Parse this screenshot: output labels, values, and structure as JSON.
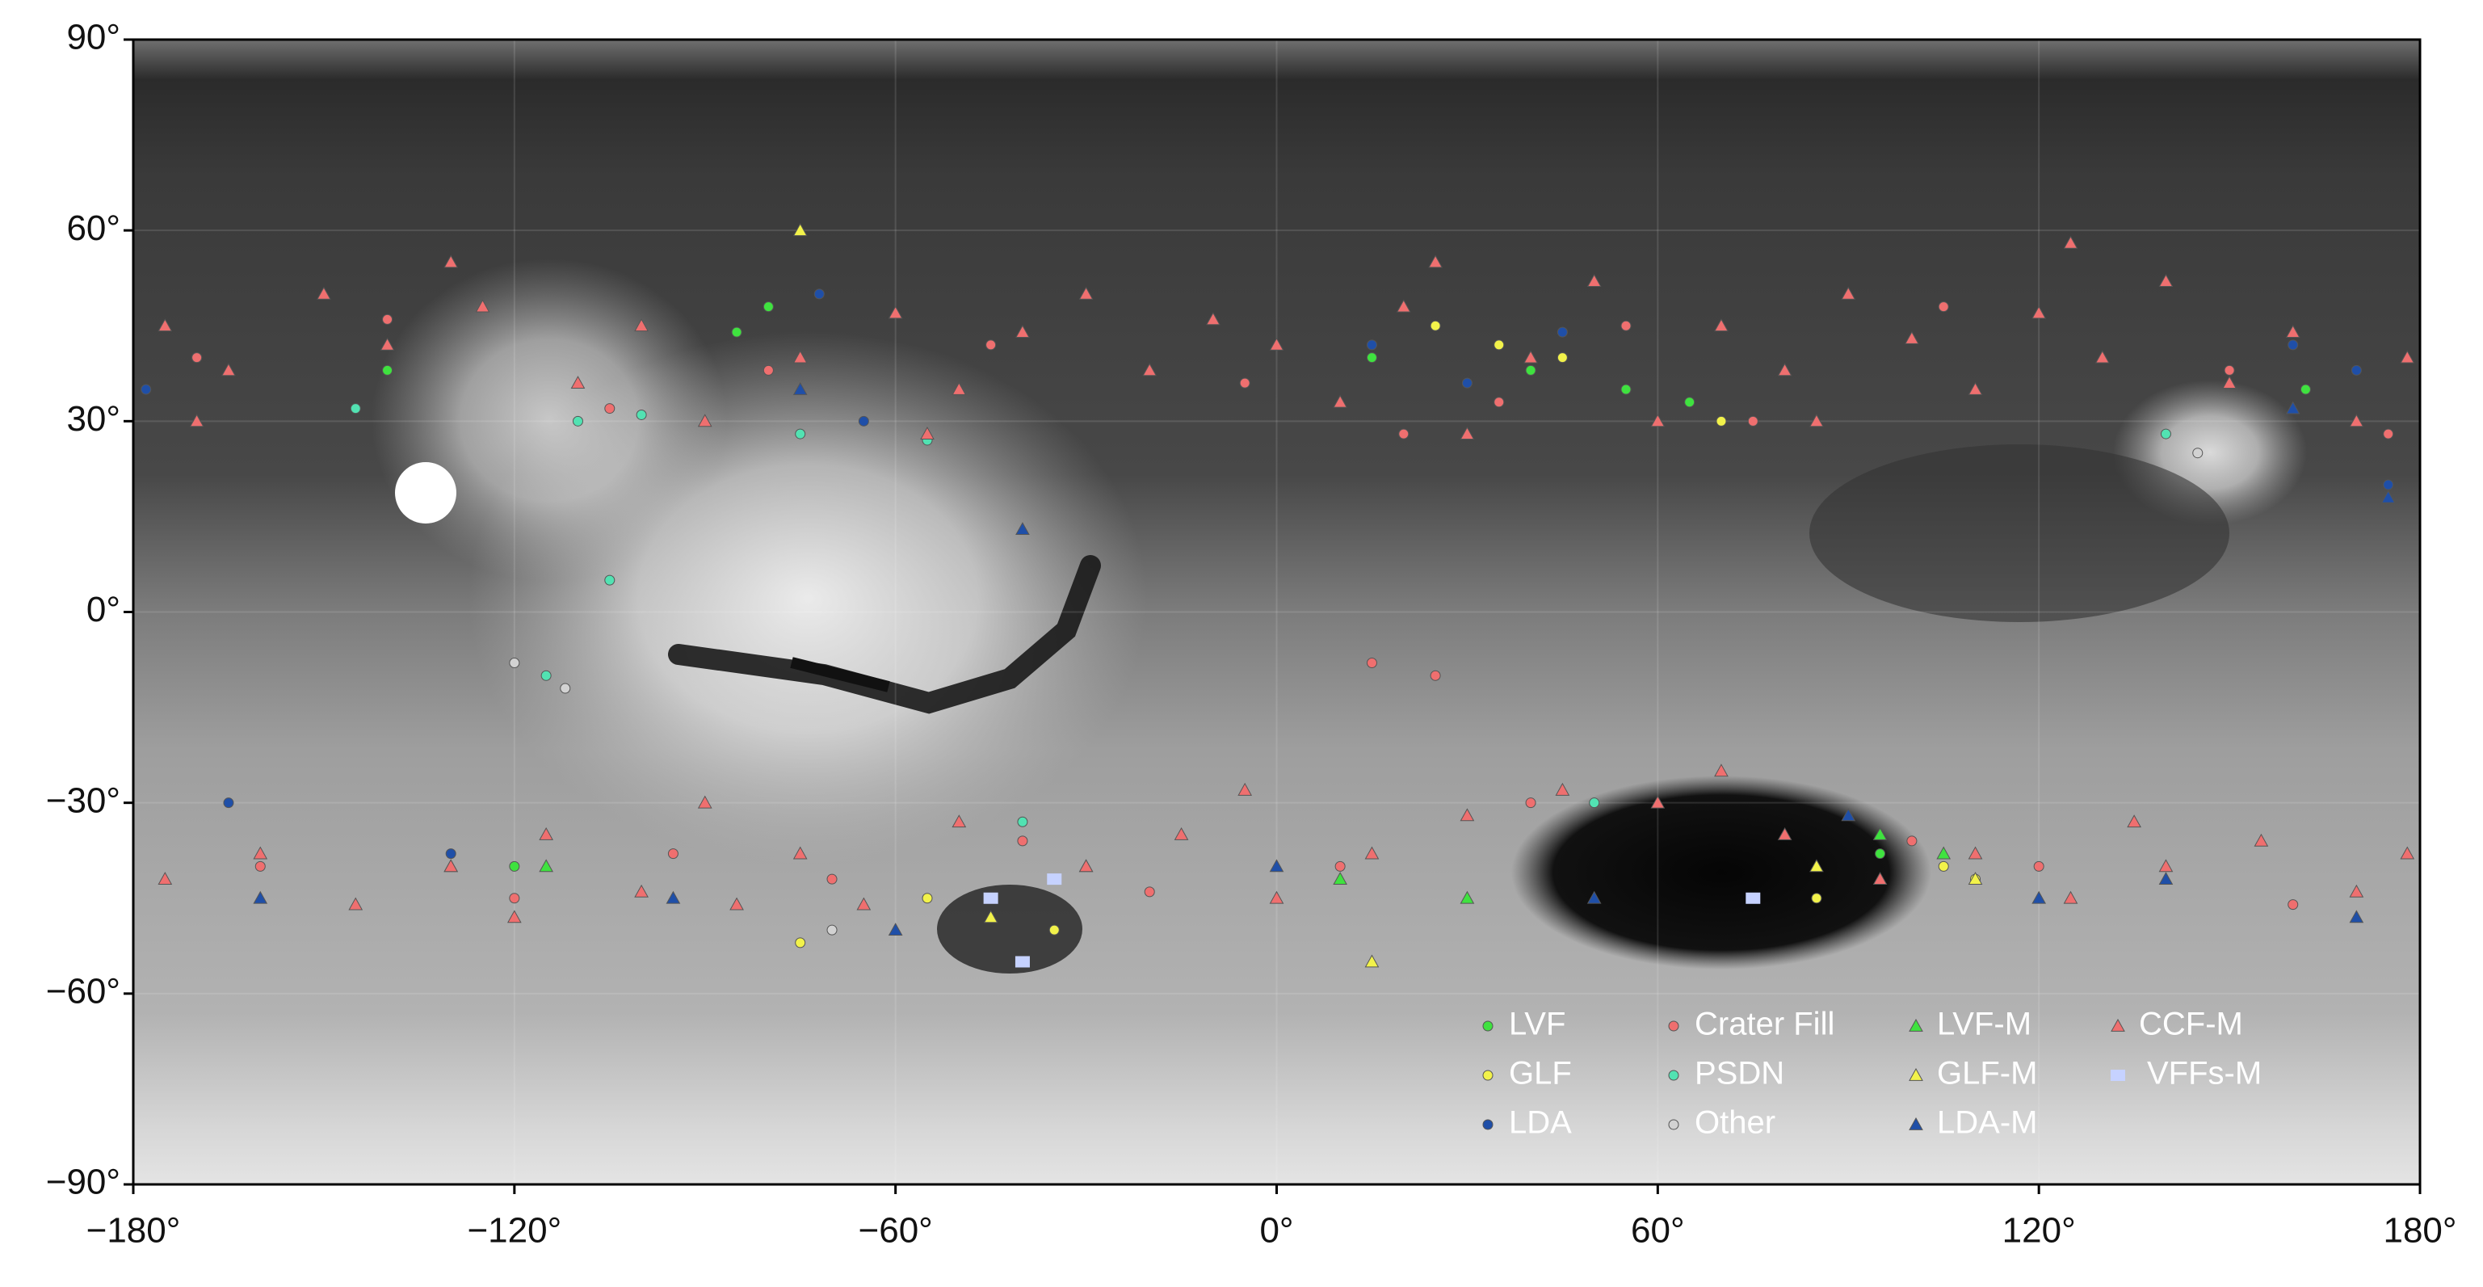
{
  "chart_data": {
    "type": "scatter",
    "xlim": [
      -180,
      180
    ],
    "ylim": [
      -90,
      90
    ],
    "xticks": [
      {
        "value": -180,
        "label": "−180°"
      },
      {
        "value": -120,
        "label": "−120°"
      },
      {
        "value": -60,
        "label": "−60°"
      },
      {
        "value": 0,
        "label": "0°"
      },
      {
        "value": 60,
        "label": "60°"
      },
      {
        "value": 120,
        "label": "120°"
      },
      {
        "value": 180,
        "label": "180°"
      }
    ],
    "yticks": [
      {
        "value": 90,
        "label": "90°"
      },
      {
        "value": 60,
        "label": "60°"
      },
      {
        "value": 30,
        "label": "30°"
      },
      {
        "value": 0,
        "label": "0°"
      },
      {
        "value": -30,
        "label": "−30°"
      },
      {
        "value": -60,
        "label": "−60°"
      },
      {
        "value": -90,
        "label": "−90°"
      }
    ],
    "grid": true,
    "legend": "lower right",
    "series": [
      {
        "name": "LVF",
        "color": "#3fe23f",
        "marker": "circle",
        "x": [
          -140,
          -85,
          -80,
          15,
          40,
          55,
          65,
          95,
          -120,
          162
        ],
        "values": [
          38,
          44,
          48,
          40,
          38,
          35,
          33,
          -38,
          -40,
          35
        ]
      },
      {
        "name": "GLF",
        "color": "#f2f24a",
        "marker": "circle",
        "x": [
          25,
          35,
          45,
          70,
          105,
          110,
          85,
          -75,
          -55,
          -35
        ],
        "values": [
          45,
          42,
          40,
          30,
          -40,
          -42,
          -45,
          -52,
          -45,
          -50
        ]
      },
      {
        "name": "LDA",
        "color": "#1f4fa8",
        "marker": "circle",
        "x": [
          -178,
          -170,
          -65,
          -72,
          15,
          30,
          45,
          160,
          170,
          175,
          -165,
          -130
        ],
        "values": [
          35,
          40,
          30,
          50,
          42,
          36,
          44,
          42,
          38,
          20,
          -30,
          -38
        ]
      },
      {
        "name": "Crater Fill",
        "color": "#ef6f6f",
        "marker": "circle",
        "x": [
          -170,
          -140,
          -105,
          -80,
          -45,
          -5,
          20,
          35,
          55,
          75,
          105,
          150,
          175,
          -160,
          -120,
          -95,
          -70,
          -40,
          -20,
          10,
          40,
          100,
          120,
          160,
          15,
          25
        ],
        "values": [
          40,
          46,
          32,
          38,
          42,
          36,
          28,
          33,
          45,
          30,
          48,
          38,
          28,
          -40,
          -45,
          -38,
          -42,
          -36,
          -44,
          -40,
          -30,
          -36,
          -40,
          -46,
          -8,
          -10
        ]
      },
      {
        "name": "PSDN",
        "color": "#52e2b2",
        "marker": "circle",
        "x": [
          -145,
          -110,
          -100,
          -75,
          -55,
          -105,
          -115,
          140,
          -40,
          50
        ],
        "values": [
          32,
          30,
          31,
          28,
          27,
          5,
          -10,
          28,
          -33,
          -30
        ]
      },
      {
        "name": "Other",
        "color": "#d2d2d2",
        "marker": "circle",
        "x": [
          -120,
          -112,
          145,
          -70
        ],
        "values": [
          -8,
          -12,
          25,
          -50
        ]
      },
      {
        "name": "LVF-M",
        "color": "#3fe23f",
        "marker": "triangle",
        "x": [
          -115,
          10,
          30,
          95,
          105
        ],
        "values": [
          -40,
          -42,
          -45,
          -35,
          -38
        ]
      },
      {
        "name": "GLF-M",
        "color": "#f2f24a",
        "marker": "triangle",
        "x": [
          -75,
          85,
          110,
          -45,
          15
        ],
        "values": [
          60,
          -40,
          -42,
          -48,
          -55
        ]
      },
      {
        "name": "LDA-M",
        "color": "#1f4fa8",
        "marker": "triangle",
        "x": [
          -160,
          -130,
          -95,
          -60,
          -30,
          0,
          50,
          90,
          120,
          140,
          170,
          160,
          175,
          -40,
          -75
        ],
        "values": [
          -45,
          -40,
          -45,
          -50,
          -40,
          -40,
          -45,
          -32,
          -45,
          -42,
          -48,
          32,
          18,
          13,
          35
        ]
      },
      {
        "name": "CCF-M",
        "color": "#ef6f6f",
        "marker": "triangle",
        "x": [
          -175,
          -165,
          -150,
          -140,
          -125,
          -110,
          -100,
          -90,
          -75,
          -60,
          -50,
          -40,
          -30,
          -20,
          -10,
          0,
          10,
          20,
          30,
          40,
          50,
          60,
          70,
          80,
          90,
          100,
          110,
          120,
          130,
          140,
          150,
          160,
          170,
          178,
          -170,
          -130,
          -55,
          25,
          85,
          125,
          -175,
          -160,
          -145,
          -130,
          -115,
          -100,
          -90,
          -75,
          -65,
          -50,
          -30,
          -15,
          0,
          15,
          30,
          45,
          60,
          80,
          95,
          110,
          125,
          140,
          155,
          170,
          -120,
          -85,
          -5,
          70,
          135,
          178
        ],
        "values": [
          45,
          38,
          50,
          42,
          48,
          36,
          45,
          30,
          40,
          47,
          35,
          44,
          50,
          38,
          46,
          42,
          33,
          48,
          28,
          40,
          52,
          30,
          45,
          38,
          50,
          43,
          35,
          47,
          40,
          52,
          36,
          44,
          30,
          40,
          30,
          55,
          28,
          55,
          30,
          58,
          -42,
          -38,
          -46,
          -40,
          -35,
          -44,
          -30,
          -38,
          -46,
          -33,
          -40,
          -35,
          -45,
          -38,
          -32,
          -28,
          -30,
          -35,
          -42,
          -38,
          -45,
          -40,
          -36,
          -44,
          -48,
          -46,
          -28,
          -25,
          -33,
          -38
        ]
      },
      {
        "name": "VFFs-M",
        "color": "#c6d2ff",
        "marker": "square",
        "x": [
          -45,
          -35,
          -40,
          75
        ],
        "values": [
          -45,
          -42,
          -55,
          -45
        ]
      }
    ]
  }
}
